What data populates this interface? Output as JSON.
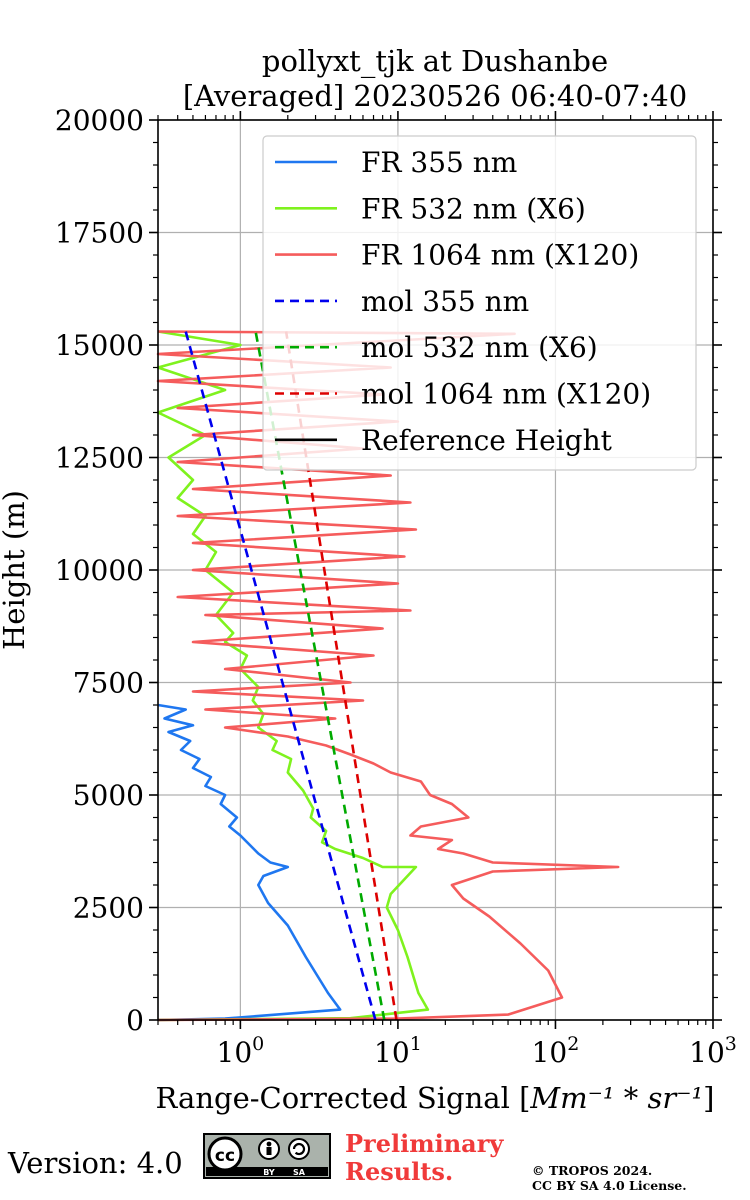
{
  "chart_data": {
    "type": "line",
    "title_line1": "pollyxt_tjk at Dushanbe",
    "title_line2": "[Averaged] 20230526 06:40-07:40",
    "xlabel": "Range-Corrected Signal [Mm⁻¹ * sr⁻¹]",
    "xlabel_main": "Range-Corrected Signal [",
    "xlabel_unit": "Mm⁻¹ * sr⁻¹",
    "xlabel_close": "]",
    "ylabel": "Height (m)",
    "xscale": "log",
    "xlim": [
      0.3,
      1000
    ],
    "ylim": [
      0,
      20000
    ],
    "grid": true,
    "legend_position": "top-right",
    "x_ticks": [
      {
        "value": 1,
        "base": "10",
        "exp": "0"
      },
      {
        "value": 10,
        "base": "10",
        "exp": "1"
      },
      {
        "value": 100,
        "base": "10",
        "exp": "2"
      },
      {
        "value": 1000,
        "base": "10",
        "exp": "3"
      }
    ],
    "y_ticks": [
      "0",
      "2500",
      "5000",
      "7500",
      "10000",
      "12500",
      "15000",
      "17500",
      "20000"
    ],
    "series": [
      {
        "name": "FR 355 nm",
        "color": "#1f77f0",
        "style": "solid",
        "points": [
          [
            0.3,
            0
          ],
          [
            0.8,
            30
          ],
          [
            4.3,
            230
          ],
          [
            3.6,
            600
          ],
          [
            2.6,
            1400
          ],
          [
            2.0,
            2100
          ],
          [
            1.5,
            2600
          ],
          [
            1.3,
            3000
          ],
          [
            1.4,
            3200
          ],
          [
            2.0,
            3400
          ],
          [
            1.55,
            3500
          ],
          [
            1.3,
            3700
          ],
          [
            1.0,
            4100
          ],
          [
            0.85,
            4300
          ],
          [
            0.95,
            4500
          ],
          [
            0.75,
            4800
          ],
          [
            0.8,
            5000
          ],
          [
            0.6,
            5200
          ],
          [
            0.65,
            5400
          ],
          [
            0.5,
            5600
          ],
          [
            0.55,
            5800
          ],
          [
            0.42,
            6000
          ],
          [
            0.48,
            6200
          ],
          [
            0.35,
            6400
          ],
          [
            0.5,
            6550
          ],
          [
            0.33,
            6700
          ],
          [
            0.45,
            6900
          ],
          [
            0.3,
            7000
          ]
        ]
      },
      {
        "name": "FR 532 nm (X6)",
        "color": "#7ff21e",
        "style": "solid",
        "points": [
          [
            0.3,
            0
          ],
          [
            5,
            40
          ],
          [
            15.5,
            230
          ],
          [
            13.5,
            600
          ],
          [
            11.5,
            1400
          ],
          [
            10,
            2000
          ],
          [
            8.5,
            2500
          ],
          [
            9,
            2800
          ],
          [
            13,
            3400
          ],
          [
            8,
            3400
          ],
          [
            6,
            3600
          ],
          [
            4,
            3800
          ],
          [
            3.3,
            3950
          ],
          [
            3.5,
            4200
          ],
          [
            2.8,
            4500
          ],
          [
            2.9,
            4700
          ],
          [
            2.5,
            5100
          ],
          [
            2.0,
            5500
          ],
          [
            2.1,
            5800
          ],
          [
            1.6,
            6000
          ],
          [
            1.7,
            6200
          ],
          [
            1.3,
            6500
          ],
          [
            1.4,
            6800
          ],
          [
            1.2,
            7100
          ],
          [
            1.3,
            7400
          ],
          [
            1.0,
            7800
          ],
          [
            1.1,
            8100
          ],
          [
            0.8,
            8400
          ],
          [
            0.9,
            8600
          ],
          [
            0.7,
            9000
          ],
          [
            0.9,
            9500
          ],
          [
            0.6,
            10000
          ],
          [
            0.7,
            10400
          ],
          [
            0.5,
            10800
          ],
          [
            0.6,
            11200
          ],
          [
            0.4,
            11600
          ],
          [
            0.5,
            12000
          ],
          [
            0.35,
            12500
          ],
          [
            0.6,
            13000
          ],
          [
            0.3,
            13500
          ],
          [
            0.8,
            14000
          ],
          [
            0.3,
            14500
          ],
          [
            1.0,
            15000
          ],
          [
            0.3,
            15300
          ]
        ]
      },
      {
        "name": "FR 1064 nm (X120)",
        "color": "#f55c5c",
        "style": "solid",
        "points": [
          [
            0.3,
            0
          ],
          [
            10,
            30
          ],
          [
            50,
            120
          ],
          [
            110,
            500
          ],
          [
            90,
            1100
          ],
          [
            60,
            1700
          ],
          [
            38,
            2300
          ],
          [
            26,
            2700
          ],
          [
            22,
            3000
          ],
          [
            40,
            3300
          ],
          [
            250,
            3400
          ],
          [
            40,
            3500
          ],
          [
            26,
            3700
          ],
          [
            18,
            3800
          ],
          [
            22,
            4000
          ],
          [
            12,
            4100
          ],
          [
            14,
            4300
          ],
          [
            28,
            4500
          ],
          [
            22,
            4800
          ],
          [
            16,
            5000
          ],
          [
            14,
            5300
          ],
          [
            9,
            5500
          ],
          [
            7,
            5700
          ],
          [
            5,
            5900
          ],
          [
            3.5,
            6100
          ],
          [
            2.0,
            6300
          ],
          [
            0.8,
            6500
          ],
          [
            4,
            6700
          ],
          [
            0.6,
            6900
          ],
          [
            6,
            7100
          ],
          [
            0.5,
            7300
          ],
          [
            5,
            7500
          ],
          [
            0.8,
            7800
          ],
          [
            7,
            8100
          ],
          [
            0.5,
            8400
          ],
          [
            8,
            8700
          ],
          [
            0.6,
            9000
          ],
          [
            12,
            9100
          ],
          [
            0.4,
            9400
          ],
          [
            10,
            9700
          ],
          [
            0.5,
            10000
          ],
          [
            11,
            10300
          ],
          [
            0.5,
            10600
          ],
          [
            13,
            10900
          ],
          [
            0.4,
            11200
          ],
          [
            12,
            11500
          ],
          [
            0.5,
            11800
          ],
          [
            9,
            12100
          ],
          [
            0.4,
            12400
          ],
          [
            6,
            12700
          ],
          [
            0.5,
            13000
          ],
          [
            10,
            13300
          ],
          [
            0.4,
            13600
          ],
          [
            8,
            13900
          ],
          [
            0.3,
            14200
          ],
          [
            9,
            14500
          ],
          [
            0.3,
            14800
          ],
          [
            55,
            15250
          ],
          [
            0.3,
            15300
          ]
        ]
      },
      {
        "name": "mol 355 nm",
        "color": "#0000ee",
        "style": "dashed",
        "points": [
          [
            7.2,
            0
          ],
          [
            0.45,
            15300
          ]
        ]
      },
      {
        "name": "mol 532 nm (X6)",
        "color": "#00aa00",
        "style": "dashed",
        "points": [
          [
            8.2,
            0
          ],
          [
            1.25,
            15300
          ]
        ]
      },
      {
        "name": "mol 1064 nm (X120)",
        "color": "#dd0000",
        "style": "dashed",
        "points": [
          [
            9.8,
            0
          ],
          [
            1.95,
            15300
          ]
        ]
      },
      {
        "name": "Reference Height",
        "color": "#000000",
        "style": "solid",
        "points": []
      }
    ]
  },
  "footer": {
    "version": "Version: 4.0",
    "cc_label": "cc",
    "by_label": "BY",
    "sa_label": "SA",
    "preliminary_line1": "Preliminary",
    "preliminary_line2": "Results.",
    "copyright_line1": "© TROPOS 2024.",
    "copyright_line2": "CC BY SA 4.0 License."
  }
}
